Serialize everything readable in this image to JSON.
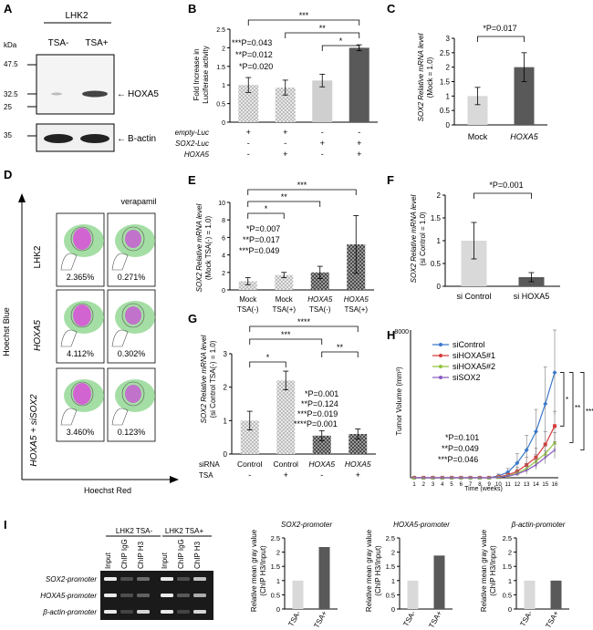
{
  "figure": {
    "panel_labels": [
      "A",
      "B",
      "C",
      "D",
      "E",
      "F",
      "G",
      "H",
      "I"
    ],
    "A": {
      "title": "LHK2",
      "lanes": [
        "TSA-",
        "TSA+"
      ],
      "kda_label": "kDa",
      "markers": [
        "47.5",
        "32.5",
        "25",
        "35"
      ],
      "band_labels": [
        "HOXA5",
        "B-actin"
      ]
    },
    "B": {
      "ylabel_1": "Fold Increase in",
      "ylabel_2": "Luciferase activity",
      "yticks": [
        "0",
        "0.5",
        "1",
        "1.5",
        "2",
        "2.5"
      ],
      "pvals": [
        "***P=0.043",
        "**P=0.012",
        "*P=0.020"
      ],
      "stars": [
        "***",
        "**",
        "*"
      ],
      "row_labels": [
        "empty-Luc",
        "SOX2-Luc",
        "HOXA5"
      ],
      "rows": [
        [
          "+",
          "+",
          "-",
          "-"
        ],
        [
          "-",
          "-",
          "+",
          "+"
        ],
        [
          "-",
          "+",
          "-",
          "+"
        ]
      ]
    },
    "C": {
      "ylabel_1": "SOX2 Relative mRNA level",
      "ylabel_2": "(Mock = 1.0)",
      "yticks": [
        "0",
        "0.5",
        "1",
        "1.5",
        "2",
        "2.5",
        "3"
      ],
      "pval": "*P=0.017",
      "categories": [
        "Mock",
        "HOXA5"
      ]
    },
    "D": {
      "ylabel": "Hoechst  Blue",
      "xlabel": "Hoechst  Red",
      "col_label": "verapamil",
      "rows": [
        "LHK2",
        "HOXA5",
        "HOXA5 + siSOX2"
      ],
      "percents": [
        [
          "2.365%",
          "0.271%"
        ],
        [
          "4.112%",
          "0.302%"
        ],
        [
          "3.460%",
          "0.123%"
        ]
      ]
    },
    "E": {
      "ylabel_1": "SOX2 Relative mRNA level",
      "ylabel_2": "(Mock TSA(-) = 1.0)",
      "yticks": [
        "0",
        "2",
        "4",
        "6",
        "8",
        "10"
      ],
      "pvals": [
        "*P=0.007",
        "**P=0.017",
        "***P=0.049"
      ],
      "stars": [
        "***",
        "**",
        "*"
      ],
      "cat_top": [
        "Mock",
        "Mock",
        "HOXA5",
        "HOXA5"
      ],
      "cat_bot": [
        "TSA(-)",
        "TSA(+)",
        "TSA(-)",
        "TSA(+)"
      ]
    },
    "F": {
      "ylabel_1": "SOX2 Relative mRNA level",
      "ylabel_2": "(si Control = 1.0)",
      "yticks": [
        "0",
        "0.5",
        "1",
        "1.5",
        "2"
      ],
      "pval": "*P=0.001",
      "categories": [
        "si Control",
        "si HOXA5"
      ]
    },
    "G": {
      "ylabel_1": "SOX2 Relative mRNA level",
      "ylabel_2": "(si Control TSA(-) = 1.0)",
      "yticks": [
        "0",
        "1",
        "2",
        "3"
      ],
      "pvals": [
        "*P=0.001",
        "**P=0.124",
        "***P=0.019",
        "****P=0.001"
      ],
      "stars": [
        "****",
        "***",
        "**",
        "*"
      ],
      "row_labels": [
        "siRNA",
        "TSA"
      ],
      "categories": [
        "Control",
        "Control",
        "HOXA5",
        "HOXA5"
      ],
      "tsa": [
        "-",
        "+",
        "-",
        "+"
      ]
    },
    "H": {
      "ylabel": "Tumor Volume (mm³)",
      "xlabel": "Time (weeks)",
      "ymax_label": "8000",
      "legend": [
        "siControl",
        "siHOXA5#1",
        "siHOXA5#2",
        "siSOX2"
      ],
      "pvals": [
        "*P=0.101",
        "**P=0.049",
        "***P=0.046"
      ],
      "stars": [
        "*",
        "**",
        "***"
      ]
    },
    "I": {
      "gel_groups": [
        "LHK2 TSA-",
        "LHK2 TSA+"
      ],
      "gel_lanes": [
        "Input",
        "ChIP IgG",
        "ChIP H3",
        "Input",
        "ChIP IgG",
        "ChIP H3"
      ],
      "gel_rows": [
        "SOX2-promoter",
        "HOXA5-promoter",
        "β-actin-promoter"
      ],
      "ylabel_1": "Relative mean gray value",
      "ylabel_2": "(ChIP H3/Input)",
      "bar_titles": [
        "SOX2-promoter",
        "HOXA5-promoter",
        "β-actin-promoter"
      ],
      "yticks": [
        "0",
        "0.5",
        "1",
        "1.5",
        "2",
        "2.5"
      ],
      "categories": [
        "TSA-",
        "TSA+"
      ]
    }
  },
  "chart_data": [
    {
      "panel": "B",
      "type": "bar",
      "title": "",
      "ylabel": "Fold Increase in Luciferase activity",
      "ylim": [
        0,
        2.5
      ],
      "categories": [
        "empty-Luc",
        "empty-Luc + HOXA5",
        "SOX2-Luc",
        "SOX2-Luc + HOXA5"
      ],
      "values": [
        1.0,
        0.93,
        1.12,
        2.0
      ],
      "errors": [
        0.2,
        0.2,
        0.17,
        0.08
      ]
    },
    {
      "panel": "C",
      "type": "bar",
      "ylabel": "SOX2 Relative mRNA level (Mock = 1.0)",
      "ylim": [
        0,
        3
      ],
      "categories": [
        "Mock",
        "HOXA5"
      ],
      "values": [
        1.0,
        2.0
      ],
      "errors": [
        0.3,
        0.5
      ]
    },
    {
      "panel": "E",
      "type": "bar",
      "ylabel": "SOX2 Relative mRNA level (Mock TSA(-) = 1.0)",
      "ylim": [
        0,
        10
      ],
      "categories": [
        "Mock TSA(-)",
        "Mock TSA(+)",
        "HOXA5 TSA(-)",
        "HOXA5 TSA(+)"
      ],
      "values": [
        1.0,
        1.7,
        2.0,
        5.2
      ],
      "errors": [
        0.4,
        0.3,
        0.7,
        3.3
      ]
    },
    {
      "panel": "F",
      "type": "bar",
      "ylabel": "SOX2 Relative mRNA level (si Control = 1.0)",
      "ylim": [
        0,
        2
      ],
      "categories": [
        "si Control",
        "si HOXA5"
      ],
      "values": [
        1.0,
        0.2
      ],
      "errors": [
        0.4,
        0.1
      ]
    },
    {
      "panel": "G",
      "type": "bar",
      "ylabel": "SOX2 Relative mRNA level (si Control TSA(-) = 1.0)",
      "ylim": [
        0,
        3
      ],
      "categories": [
        "Control TSA-",
        "Control TSA+",
        "HOXA5 TSA-",
        "HOXA5 TSA+"
      ],
      "values": [
        1.0,
        2.2,
        0.55,
        0.6
      ],
      "errors": [
        0.28,
        0.28,
        0.15,
        0.15
      ]
    },
    {
      "panel": "H",
      "type": "line",
      "xlabel": "Time (weeks)",
      "ylabel": "Tumor Volume (mm3)",
      "ylim": [
        0,
        8000
      ],
      "x": [
        1,
        2,
        3,
        4,
        5,
        6,
        7,
        8,
        9,
        10,
        11,
        12,
        13,
        14,
        15,
        16
      ],
      "series": [
        {
          "name": "siControl",
          "values": [
            0,
            0,
            0,
            0,
            0,
            0,
            0,
            0,
            0,
            100,
            300,
            800,
            1500,
            2500,
            4000,
            5700
          ],
          "errors": [
            0,
            0,
            0,
            0,
            0,
            0,
            0,
            0,
            0,
            100,
            200,
            500,
            800,
            1200,
            2000,
            2300
          ]
        },
        {
          "name": "siHOXA5#1",
          "values": [
            0,
            0,
            0,
            0,
            0,
            0,
            0,
            0,
            0,
            50,
            150,
            350,
            700,
            1100,
            1800,
            2800
          ],
          "errors": [
            0,
            0,
            0,
            0,
            0,
            0,
            0,
            0,
            0,
            50,
            100,
            200,
            400,
            500,
            700,
            800
          ]
        },
        {
          "name": "siHOXA5#2",
          "values": [
            0,
            0,
            0,
            0,
            0,
            0,
            0,
            0,
            0,
            30,
            100,
            250,
            500,
            900,
            1300,
            1900
          ],
          "errors": [
            0,
            0,
            0,
            0,
            0,
            0,
            0,
            0,
            0,
            30,
            80,
            150,
            250,
            350,
            450,
            550
          ]
        },
        {
          "name": "siSOX2",
          "values": [
            0,
            0,
            0,
            0,
            0,
            0,
            0,
            0,
            0,
            20,
            80,
            200,
            400,
            700,
            1100,
            1500
          ],
          "errors": [
            0,
            0,
            0,
            0,
            0,
            0,
            0,
            0,
            0,
            20,
            60,
            100,
            200,
            250,
            350,
            450
          ]
        }
      ]
    },
    {
      "panel": "I-1",
      "type": "bar",
      "title": "SOX2-promoter",
      "ylim": [
        0,
        2.5
      ],
      "categories": [
        "TSA-",
        "TSA+"
      ],
      "values": [
        1.0,
        2.18
      ]
    },
    {
      "panel": "I-2",
      "type": "bar",
      "title": "HOXA5-promoter",
      "ylim": [
        0,
        2.5
      ],
      "categories": [
        "TSA-",
        "TSA+"
      ],
      "values": [
        1.0,
        1.88
      ]
    },
    {
      "panel": "I-3",
      "type": "bar",
      "title": "β-actin-promoter",
      "ylim": [
        0,
        2.5
      ],
      "categories": [
        "TSA-",
        "TSA+"
      ],
      "values": [
        1.0,
        1.0
      ]
    }
  ],
  "colors": {
    "light": "#d9d9d9",
    "dark": "#595959",
    "mid": "#a6a6a6",
    "check": "#cfcfcf",
    "siControl": "#3a78c9",
    "siHOXA5#1": "#d83a3a",
    "siHOXA5#2": "#92c440",
    "siSOX2": "#8a5cbf"
  }
}
